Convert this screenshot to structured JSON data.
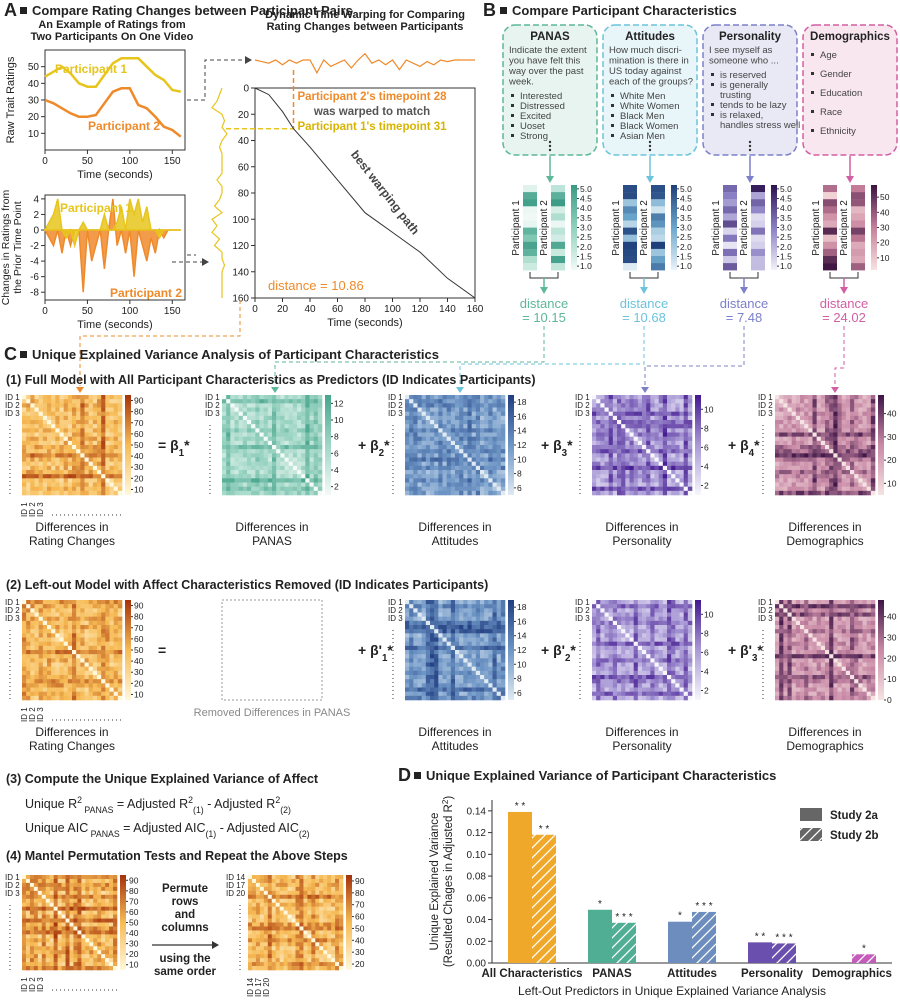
{
  "panel_a": {
    "label": "A",
    "title": "Compare Rating Changes between Participant Pairs"
  },
  "panel_b": {
    "label": "B",
    "title": "Compare Participant Characteristics",
    "participants": [
      "Participant 1",
      "Participant 2"
    ],
    "characteristics": [
      {
        "name": "PANAS",
        "color": "#5db79a",
        "fill": "#e7f4ef",
        "cmap": [
          "#f2faf7",
          "#8fd1bd",
          "#3a9a84"
        ],
        "prompt": [
          "Indicate the extent",
          "you have felt this",
          "way over the past",
          "week."
        ],
        "items": [
          [
            "Interested"
          ],
          [
            "Distressed"
          ],
          [
            "Excited"
          ],
          [
            "Uoset"
          ],
          [
            "Strong"
          ]
        ],
        "colorbar_lim": [
          0.8,
          5.2
        ],
        "colorbar_ticks": [
          {
            "value": 1,
            "label": "1.0"
          },
          1.5,
          {
            "value": 2,
            "label": "2.0"
          },
          2.5,
          {
            "value": 3,
            "label": "3.0"
          },
          3.5,
          {
            "value": 4,
            "label": "4.0"
          },
          4.5,
          {
            "value": 5,
            "label": "5.0"
          }
        ],
        "distance": [
          "distance",
          "= 10.15"
        ]
      },
      {
        "name": "Attitudes",
        "color": "#6cc3dc",
        "fill": "#e8f5f9",
        "cmap": [
          "#eaf3f8",
          "#6ba6cc",
          "#1f3f7a"
        ],
        "prompt": [
          "How much discri-",
          "mination is there in",
          "US today against",
          "each of the groups?"
        ],
        "items": [
          [
            "White Men"
          ],
          [
            "White Women"
          ],
          [
            "Black Men"
          ],
          [
            "Black Women"
          ],
          [
            "Asian Men"
          ]
        ],
        "colorbar_lim": [
          0.8,
          5.2
        ],
        "colorbar_ticks": [
          {
            "value": 1,
            "label": "1.0"
          },
          1.5,
          {
            "value": 2,
            "label": "2.0"
          },
          2.5,
          {
            "value": 3,
            "label": "3.0"
          },
          3.5,
          {
            "value": 4,
            "label": "4.0"
          },
          4.5,
          {
            "value": 5,
            "label": "5.0"
          }
        ],
        "distance": [
          "distance",
          "= 10.68"
        ]
      },
      {
        "name": "Personality",
        "color": "#7c80ca",
        "fill": "#e9e9f6",
        "cmap": [
          "#f3f2fa",
          "#8a7fc4",
          "#2c1250"
        ],
        "prompt": [
          "I see myself as",
          "someone who ..."
        ],
        "items": [
          [
            "is reserved"
          ],
          [
            "is generally",
            "trusting"
          ],
          [
            "tends to be lazy"
          ],
          [
            "is relaxed,",
            "handles stress well"
          ]
        ],
        "colorbar_lim": [
          0.8,
          5.2
        ],
        "colorbar_ticks": [
          {
            "value": 1,
            "label": "1.0"
          },
          1.5,
          {
            "value": 2,
            "label": "2.0"
          },
          2.5,
          {
            "value": 3,
            "label": "3.0"
          },
          3.5,
          {
            "value": 4,
            "label": "4.0"
          },
          4.5,
          {
            "value": 5,
            "label": "5.0"
          }
        ],
        "distance": [
          "distance",
          "= 7.48"
        ]
      },
      {
        "name": "Demographics",
        "color": "#d35ea4",
        "fill": "#f8e7ef",
        "cmap": [
          "#f8e2e0",
          "#c77f9a",
          "#3b1440"
        ],
        "items": [
          [
            "Age"
          ],
          [
            "Gender"
          ],
          [
            "Education"
          ],
          [
            "Race"
          ],
          [
            "Ethnicity"
          ]
        ],
        "colorbar_lim": [
          2,
          58
        ],
        "colorbar_ticks": [
          10,
          20,
          30,
          40,
          50
        ],
        "distance": [
          "distance",
          "= 24.02"
        ]
      }
    ]
  },
  "panel_c": {
    "label": "C",
    "title": "Unique Explained Variance Analysis of Participant Characteristics",
    "id_labels": [
      "ID 1",
      "ID 2",
      "ID 3"
    ],
    "full_model": {
      "heading": "(1) Full Model with All Participant Characteristics as Predictors (ID Indicates Participants)",
      "operators": [
        {
          "text": "= β",
          "sub": "1",
          "end": "*"
        },
        {
          "text": "+ β",
          "sub": "2",
          "end": "*"
        },
        {
          "text": "+ β",
          "sub": "3",
          "end": "*"
        },
        {
          "text": "+ β",
          "sub": "4",
          "end": "*"
        }
      ],
      "matrices": [
        {
          "caption": [
            "Differences in",
            "Rating Changes"
          ],
          "cmap": [
            "#fff8dc",
            "#f7bb55",
            "#a4320a"
          ],
          "colorbar_lim": [
            5,
            95
          ],
          "colorbar_ticks": [
            10,
            20,
            30,
            40,
            50,
            60,
            70,
            80,
            90
          ]
        },
        {
          "caption": [
            "Differences in",
            "PANAS"
          ],
          "cmap": [
            "#f3faf7",
            "#9fd6c5",
            "#47a48c"
          ],
          "colorbar_lim": [
            1,
            13
          ],
          "colorbar_ticks": [
            2,
            4,
            6,
            8,
            10,
            12
          ]
        },
        {
          "caption": [
            "Differences in",
            "Attitudes"
          ],
          "cmap": [
            "#dfeaf3",
            "#6d95c5",
            "#203d80"
          ],
          "colorbar_lim": [
            5,
            19
          ],
          "colorbar_ticks": [
            6,
            8,
            10,
            12,
            14,
            16,
            18
          ]
        },
        {
          "caption": [
            "Differences in",
            "Personality"
          ],
          "cmap": [
            "#f7f6fc",
            "#a99ad6",
            "#43198f"
          ],
          "colorbar_lim": [
            1,
            11.5
          ],
          "colorbar_ticks": [
            2,
            4,
            6,
            8,
            10
          ]
        },
        {
          "caption": [
            "Differences in",
            "Demographics"
          ],
          "cmap": [
            "#f6e3e3",
            "#c98aa6",
            "#3e1547"
          ],
          "colorbar_lim": [
            5,
            48
          ],
          "colorbar_ticks": [
            10,
            20,
            30,
            40
          ]
        }
      ]
    },
    "left_out_model": {
      "heading": "(2) Left-out Model with Affect Characteristics Removed (ID Indicates Participants)",
      "operators": [
        {
          "text": "="
        },
        {
          "text": "+ β'",
          "sub": "1",
          "end": "*"
        },
        {
          "text": "+ β'",
          "sub": "2",
          "end": "*"
        },
        {
          "text": "+ β'",
          "sub": "3",
          "end": "*"
        }
      ],
      "matrices": [
        {
          "caption": [
            "Differences in",
            "Rating Changes"
          ],
          "cmap": [
            "#fff8dc",
            "#f7bb55",
            "#a4320a"
          ],
          "colorbar_lim": [
            5,
            95
          ],
          "colorbar_ticks": [
            10,
            20,
            30,
            40,
            50,
            60,
            70,
            80,
            90
          ]
        },
        {
          "removed": "Removed Differences in PANAS"
        },
        {
          "caption": [
            "Differences in",
            "Attitudes"
          ],
          "cmap": [
            "#dfeaf3",
            "#6d95c5",
            "#203d80"
          ],
          "colorbar_lim": [
            5,
            19
          ],
          "colorbar_ticks": [
            6,
            8,
            10,
            12,
            14,
            16,
            18
          ]
        },
        {
          "caption": [
            "Differences in",
            "Personality"
          ],
          "cmap": [
            "#f7f6fc",
            "#a99ad6",
            "#43198f"
          ],
          "colorbar_lim": [
            1,
            11.5
          ],
          "colorbar_ticks": [
            2,
            4,
            6,
            8,
            10
          ]
        },
        {
          "caption": [
            "Differences in",
            "Demographics"
          ],
          "cmap": [
            "#f6e3e3",
            "#c98aa6",
            "#3e1547"
          ],
          "colorbar_lim": [
            0,
            48
          ],
          "colorbar_ticks": [
            0,
            10,
            20,
            30,
            40
          ]
        }
      ]
    },
    "step3": {
      "heading": "(3) Compute the Unique Explained Variance of Affect",
      "formulas": [
        [
          {
            "text": "Unique R"
          },
          {
            "text": "2",
            "pos": "sup"
          },
          {
            "text": " PANAS",
            "pos": "sub"
          },
          {
            "text": " = Adjusted R"
          },
          {
            "text": "2",
            "pos": "sup"
          },
          {
            "text": "(1)",
            "pos": "sub"
          },
          {
            "text": " - Adjusted R"
          },
          {
            "text": "2",
            "pos": "sup"
          },
          {
            "text": "(2)",
            "pos": "sub"
          }
        ],
        [
          {
            "text": "Unique AIC"
          },
          {
            "text": " PANAS",
            "pos": "sub"
          },
          {
            "text": " = Adjusted AIC"
          },
          {
            "text": "(1)",
            "pos": "sub"
          },
          {
            "text": " - Adjusted AIC"
          },
          {
            "text": "(2)",
            "pos": "sub"
          }
        ]
      ]
    },
    "step4": {
      "heading": "(4) Mantel Permutation Tests and Repeat the Above Steps",
      "permute": [
        "Permute",
        "rows",
        "and",
        "columns"
      ],
      "order": [
        "using the",
        "same order"
      ],
      "permuted_id_labels": [
        "ID 14",
        "ID 17",
        "ID 20"
      ],
      "cmap": [
        "#fff8dc",
        "#f7bb55",
        "#a4320a"
      ],
      "left_colorbar_lim": [
        5,
        95
      ],
      "left_colorbar_ticks": [
        10,
        20,
        30,
        40,
        50,
        60,
        70,
        80,
        90
      ],
      "right_colorbar_lim": [
        15,
        95
      ],
      "right_colorbar_ticks": [
        20,
        30,
        40,
        50,
        60,
        70,
        80,
        90
      ]
    }
  },
  "chart_data": [
    {
      "type": "line",
      "title": [
        "An Example of Ratings from",
        "Two Participants On One Video"
      ],
      "y_label": "Raw Trait Ratings",
      "x_label": "Time (seconds)",
      "x": [
        0,
        10,
        20,
        30,
        40,
        50,
        60,
        70,
        80,
        90,
        100,
        110,
        120,
        130,
        140,
        150,
        160
      ],
      "series": [
        {
          "name": "Participant 1",
          "color": "#e7c51c",
          "values": [
            44,
            47,
            50,
            46,
            40,
            38,
            38,
            45,
            52,
            55,
            55,
            55,
            50,
            45,
            42,
            36,
            35
          ]
        },
        {
          "name": "Participant 2",
          "color": "#ef8a2b",
          "values": [
            30,
            28,
            25,
            22,
            20,
            20,
            21,
            28,
            35,
            37,
            37,
            27,
            25,
            20,
            14,
            12,
            8
          ]
        }
      ],
      "xlim": [
        0,
        165
      ],
      "ylim": [
        0,
        60
      ],
      "xticks": [
        0,
        50,
        100,
        150
      ],
      "yticks": [
        10,
        20,
        30,
        40,
        50
      ]
    },
    {
      "type": "line",
      "fill": true,
      "y_label": [
        "Changes in Ratings from",
        "the Prior Time Point"
      ],
      "x_label": "Time (seconds)",
      "x": [
        0,
        5,
        10,
        15,
        20,
        25,
        30,
        35,
        40,
        45,
        50,
        55,
        60,
        65,
        70,
        75,
        80,
        85,
        90,
        95,
        100,
        105,
        110,
        115,
        120,
        125,
        130,
        135,
        140,
        145,
        150,
        155,
        160
      ],
      "series": [
        {
          "name": "Participant 1",
          "color": "#e7c51c",
          "values": [
            0,
            1,
            2,
            4,
            0,
            -1,
            0,
            -2,
            0,
            1,
            0,
            0,
            0,
            0,
            2,
            0,
            0,
            1,
            3,
            0,
            4,
            2,
            4,
            1,
            3,
            0,
            0,
            -1,
            0,
            0,
            0,
            0,
            0
          ]
        },
        {
          "name": "Participant 2",
          "color": "#ef8a2b",
          "values": [
            0,
            -1,
            -2,
            0,
            -3,
            0,
            -2,
            0,
            0,
            -8,
            0,
            -4,
            -2,
            0,
            -5,
            0,
            4,
            -2,
            0,
            -3,
            0,
            -6,
            0,
            -2,
            -4,
            -1,
            -3,
            0,
            -1,
            0,
            0,
            0,
            0
          ]
        }
      ],
      "xlim": [
        0,
        165
      ],
      "ylim": [
        -9,
        4.5
      ],
      "xticks": [
        0,
        50,
        100,
        150
      ],
      "yticks": [
        -8,
        -6,
        -4,
        -2,
        0,
        2,
        4
      ]
    },
    {
      "type": "dtw",
      "title": [
        "Dynamic Time Warping for Comparing",
        "Rating Changes between Participants"
      ],
      "x_label": "Time (seconds)",
      "color": "#333333",
      "x": [
        0,
        10,
        20,
        28,
        40,
        60,
        80,
        100,
        120,
        140,
        160
      ],
      "values": [
        0,
        5,
        18,
        31,
        45,
        70,
        95,
        110,
        125,
        145,
        160
      ],
      "xlim": [
        0,
        160
      ],
      "ylim": [
        160,
        0
      ],
      "xticks": [
        0,
        20,
        40,
        60,
        80,
        100,
        120,
        140,
        160
      ],
      "yticks": [
        0,
        20,
        40,
        60,
        80,
        100,
        120,
        140,
        160
      ],
      "annotation": [
        "Participant 2's timepoint 28",
        "was warped to match",
        "Participant 1's timepoint 31"
      ],
      "path_label": "best warping path",
      "distance": "distance = 10.86"
    },
    {
      "type": "bar",
      "panel_label": "D",
      "title": "Unique Explained Variance of Participant Characteristics",
      "y_label": [
        [
          {
            "text": "Unique Explained Variance"
          }
        ],
        [
          {
            "text": "(Resulted Chages in Adjusted R"
          },
          {
            "text": "2",
            "pos": "sup"
          },
          {
            "text": ")"
          }
        ]
      ],
      "x_label": "Left-Out Predictors in Unique Explained Variance Analysis",
      "categories": [
        "All Characteristics",
        "PANAS",
        "Attitudes",
        "Personality",
        "Demographics"
      ],
      "category_colors": [
        "#f0a82a",
        "#4fae94",
        "#6c8dbe",
        "#6b4fae",
        "#c55bbd"
      ],
      "series": [
        {
          "name": "Study 2a",
          "color": "#666666",
          "values": [
            0.139,
            0.049,
            0.038,
            0.019,
            0
          ],
          "significance": [
            "* *",
            "*",
            "*",
            "* *",
            null
          ]
        },
        {
          "name": "Study 2b",
          "color": "#666666",
          "hatch": true,
          "values": [
            0.118,
            0.037,
            0.047,
            0.018,
            0.008
          ],
          "significance": [
            "* *",
            "* * *",
            "* * *",
            "* * *",
            "*"
          ]
        }
      ],
      "ylim": [
        0,
        0.15
      ],
      "yticks": [
        {
          "value": 0,
          "label": "0.00"
        },
        {
          "value": 0.02,
          "label": "0.02"
        },
        {
          "value": 0.04,
          "label": "0.04"
        },
        {
          "value": 0.06,
          "label": "0.06"
        },
        {
          "value": 0.08,
          "label": "0.08"
        },
        {
          "value": 0.1,
          "label": "0.10"
        },
        {
          "value": 0.12,
          "label": "0.12"
        },
        {
          "value": 0.14,
          "label": "0.14"
        }
      ],
      "legend": "top-right"
    }
  ]
}
